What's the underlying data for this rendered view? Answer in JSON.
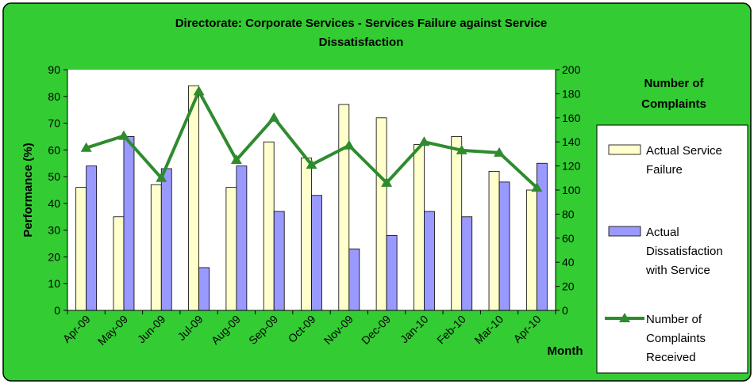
{
  "colors": {
    "background": "#33cc33",
    "plot_area": "#ffffff",
    "bar_failure": "#ffffcc",
    "bar_dissatisfaction": "#9999ff",
    "line_complaints": "#2e8b2e",
    "axis": "#000000"
  },
  "chart_data": {
    "type": "bar",
    "title": "Directorate: Corporate Services - Services Failure against Service Dissatisfaction",
    "title_lines": [
      "Directorate: Corporate Services - Services Failure against Service",
      "Dissatisfaction"
    ],
    "xlabel": "Month",
    "ylabel": "Performance (%)",
    "y2label": "Number of Complaints",
    "y2label_lines": [
      "Number of",
      "Complaints"
    ],
    "categories": [
      "Apr-09",
      "May-09",
      "Jun-09",
      "Jul-09",
      "Aug-09",
      "Sep-09",
      "Oct-09",
      "Nov-09",
      "Dec-09",
      "Jan-10",
      "Feb-10",
      "Mar-10",
      "Apr-10"
    ],
    "ylim": [
      0,
      90
    ],
    "yticks": [
      0,
      10,
      20,
      30,
      40,
      50,
      60,
      70,
      80,
      90
    ],
    "y2lim": [
      0,
      200
    ],
    "y2ticks": [
      0,
      20,
      40,
      60,
      80,
      100,
      120,
      140,
      160,
      180,
      200
    ],
    "grid": false,
    "legend_position": "right",
    "series": [
      {
        "name": "Actual Service Failure",
        "legend_lines": [
          "Actual Service",
          "Failure"
        ],
        "kind": "bar",
        "axis": "left",
        "values": [
          46,
          35,
          47,
          84,
          46,
          63,
          57,
          77,
          72,
          62,
          65,
          52,
          45
        ]
      },
      {
        "name": "Actual Dissatisfaction with Service",
        "legend_lines": [
          "Actual",
          "Dissatisfaction",
          "with Service"
        ],
        "kind": "bar",
        "axis": "left",
        "values": [
          54,
          65,
          53,
          16,
          54,
          37,
          43,
          23,
          28,
          37,
          35,
          48,
          55
        ]
      },
      {
        "name": "Number of Complaints Received",
        "legend_lines": [
          "Number of",
          "Complaints",
          "Received"
        ],
        "kind": "line",
        "axis": "right",
        "marker": "triangle",
        "values": [
          135,
          145,
          110,
          182,
          125,
          160,
          121,
          137,
          106,
          140,
          133,
          131,
          102
        ]
      }
    ]
  }
}
